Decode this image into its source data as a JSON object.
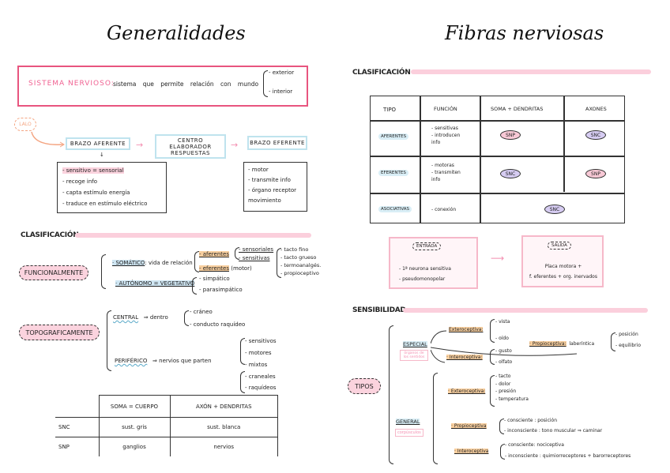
{
  "left": {
    "title": "Generalidades",
    "definition": {
      "term": "SISTEMA NERVIOSO:",
      "text": "sistema que permite relación con mundo",
      "branches": [
        "- exterior",
        "- interior"
      ]
    },
    "flow": {
      "source": "LALO",
      "afferent": "BRAZO AFERENTE",
      "center": "CENTRO ELABORADOR RESPUESTAS",
      "efferent": "BRAZO EFERENTE",
      "afferent_items": [
        "- sensitivo = sensorial",
        "- recoge info",
        "- capta estímulo energía",
        "- traduce en estímulo eléctrico"
      ],
      "efferent_items": [
        "- motor",
        "- transmite info",
        "- órgano receptor",
        "movimiento"
      ]
    },
    "classification": {
      "heading": "CLASIFICACIÓN",
      "functional": {
        "label": "FUNCIONALMENTE",
        "somatic": "· SOMÁTICO",
        "somatic_text": ": vida de relación",
        "aferentes": "- aferentes",
        "eferentes": "- eferentes",
        "motor": "(motor)",
        "afer_sub": [
          "- sensoriales",
          "- sensitivas"
        ],
        "sens_sub": [
          "- tacto fino",
          "- tacto grueso",
          "- termoanalgés.",
          "- propioceptivo"
        ],
        "autonomo": "· AUTÓNOMO = VEGETATIVO",
        "auto_sub": [
          "- simpático",
          "- parasimpático"
        ]
      },
      "topographic": {
        "label": "TOPOGRAFICAMENTE",
        "central": "CENTRAL",
        "central_text": "⇒ dentro",
        "central_sub": [
          "- cráneo",
          "- conducto raquídeo"
        ],
        "peripheral": "PERIFÉRICO",
        "peripheral_text": "⇒ nervios que parten",
        "nerve_types": [
          "- sensitivos",
          "- motores",
          "- mixtos"
        ],
        "nerve_origin": [
          "- craneales",
          "- raquídeos"
        ]
      }
    },
    "table": {
      "headers": [
        "",
        "SOMA = CUERPO",
        "AXÓN + DENDRITAS"
      ],
      "rows": [
        [
          "SNC",
          "sust. gris",
          "sust. blanca"
        ],
        [
          "SNP",
          "ganglios",
          "nervios"
        ]
      ]
    }
  },
  "right": {
    "title": "Fibras nerviosas",
    "classification_heading": "CLASIFICACIÓN",
    "table": {
      "headers": [
        "TIPO",
        "FUNCIÓN",
        "SOMA + DENDRITAS",
        "AXONES"
      ],
      "rows": [
        {
          "type": "AFERENTES",
          "func": [
            "- sensitivas",
            "- introducen info"
          ],
          "soma": "SNP",
          "axon": "SNC"
        },
        {
          "type": "EFERENTES",
          "func": [
            "- motoras",
            "- transmiten info"
          ],
          "soma": "SNC",
          "axon": "SNP"
        },
        {
          "type": "ASOCIATIVAS",
          "func": [
            "- conexión"
          ],
          "both": "SNC"
        }
      ]
    },
    "entrada": {
      "label": "ENTRADA",
      "items": [
        "- 1ª neurona sensitiva",
        "- pseudomonopolar"
      ]
    },
    "salida": {
      "label": "SALIDA",
      "lines": [
        "Placa motora +",
        "f. eferentes + org. inervados"
      ]
    },
    "sensibilidad": {
      "heading": "SENSIBILIDAD",
      "tipos": "TIPOS",
      "especial": "ESPECIAL",
      "especial_note": "órganos de los sentidos",
      "esp_extero": "Exteroceptiva:",
      "esp_extero_items": [
        "- vista",
        "- oído"
      ],
      "esp_intero": "· Interoceptiva:",
      "esp_intero_items": [
        "- gusto",
        "- olfato"
      ],
      "esp_propio": "· Propioceptiva:",
      "esp_propio_text": "laberíntica",
      "esp_propio_items": [
        "- posición",
        "- equilibrio"
      ],
      "general": "GENERAL",
      "general_note": "corpúsculos",
      "gen_extero": "· Exteroceptiva:",
      "gen_extero_items": [
        "- tacto",
        "- dolor",
        "- presión",
        "- temperatura"
      ],
      "gen_propio": "· Propioceptiva",
      "gen_propio_items": [
        "- consciente : posición",
        "- inconsciente : tono muscular ⇒ caminar"
      ],
      "gen_intero": "· Interoceptiva",
      "gen_intero_items": [
        "- consciente: nociceptiva",
        "- inconsciente : quimiorreceptores + barorreceptores"
      ]
    }
  },
  "colors": {
    "pink": "#f06292",
    "light_pink": "#fbcfdc",
    "light_blue": "#bfe3ee",
    "orange": "#f8cf9f",
    "lavender": "#d6ccf2"
  }
}
